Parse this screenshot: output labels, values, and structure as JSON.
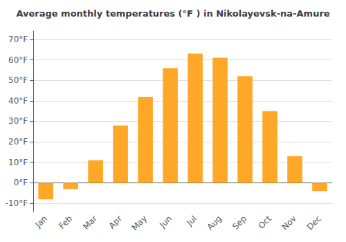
{
  "chart_data": {
    "type": "bar",
    "title": "Average monthly temperatures (°F ) in Nikolayevsk-na-Amure",
    "categories": [
      "Jan",
      "Feb",
      "Mar",
      "Apr",
      "May",
      "Jun",
      "Jul",
      "Aug",
      "Sep",
      "Oct",
      "Nov",
      "Dec"
    ],
    "values": [
      -8,
      -3,
      11,
      28,
      42,
      56,
      63,
      61,
      52,
      35,
      13,
      -4
    ],
    "color": "#FFA726",
    "ylim": [
      -14,
      74
    ],
    "yticks": [
      {
        "value": -10,
        "label": "-10°F"
      },
      {
        "value": 0,
        "label": "0°F"
      },
      {
        "value": 10,
        "label": "10°F"
      },
      {
        "value": 20,
        "label": "20°F"
      },
      {
        "value": 30,
        "label": "30°F"
      },
      {
        "value": 40,
        "label": "40°F"
      },
      {
        "value": 50,
        "label": "50°F"
      },
      {
        "value": 60,
        "label": "60°F"
      },
      {
        "value": 70,
        "label": "70°F"
      }
    ],
    "grid": true
  }
}
